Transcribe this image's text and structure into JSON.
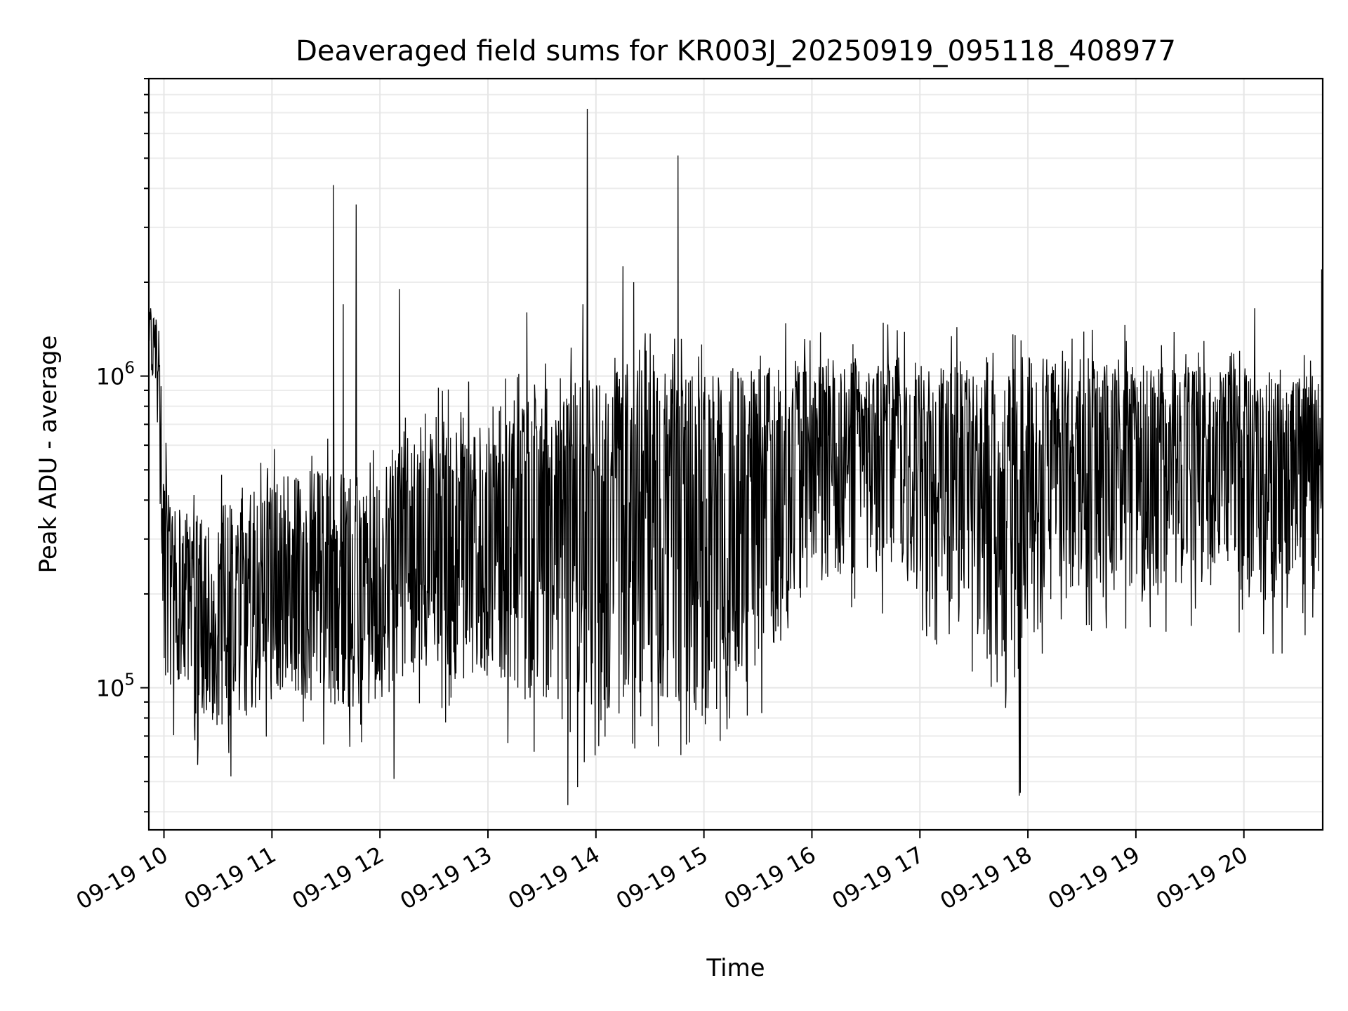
{
  "chart_data": {
    "type": "line",
    "title": "Deaveraged field sums for KR003J_20250919_095118_408977",
    "xlabel": "Time",
    "ylabel": "Peak ADU - average",
    "yscale": "log",
    "x_range_hours": [
      9.86,
      20.73
    ],
    "ylim": [
      35000,
      9000000
    ],
    "grid": true,
    "legend": "none",
    "line_color": "#000000",
    "x_ticks": [
      {
        "hour": 10,
        "label": "09-19 10"
      },
      {
        "hour": 11,
        "label": "09-19 11"
      },
      {
        "hour": 12,
        "label": "09-19 12"
      },
      {
        "hour": 13,
        "label": "09-19 13"
      },
      {
        "hour": 14,
        "label": "09-19 14"
      },
      {
        "hour": 15,
        "label": "09-19 15"
      },
      {
        "hour": 16,
        "label": "09-19 16"
      },
      {
        "hour": 17,
        "label": "09-19 17"
      },
      {
        "hour": 18,
        "label": "09-19 18"
      },
      {
        "hour": 19,
        "label": "09-19 19"
      },
      {
        "hour": 20,
        "label": "09-19 20"
      }
    ],
    "y_ticks": [
      {
        "value": 100000,
        "base": "10",
        "exp": "5"
      },
      {
        "value": 1000000,
        "base": "10",
        "exp": "6"
      }
    ],
    "series_envelope": {
      "hours": [
        9.86,
        9.95,
        10.0,
        10.25,
        10.5,
        10.75,
        11.0,
        11.25,
        11.5,
        11.75,
        12.0,
        12.25,
        12.5,
        12.75,
        13.0,
        13.25,
        13.5,
        13.75,
        14.0,
        14.25,
        14.5,
        14.75,
        15.0,
        15.25,
        15.5,
        15.75,
        16.0,
        16.25,
        16.5,
        16.75,
        17.0,
        17.25,
        17.5,
        17.75,
        18.0,
        18.25,
        18.5,
        18.75,
        19.0,
        19.25,
        19.5,
        19.75,
        20.0,
        20.25,
        20.5,
        20.73
      ],
      "typical": [
        1400000,
        1200000,
        300000,
        180000,
        170000,
        190000,
        210000,
        240000,
        230000,
        190000,
        200000,
        320000,
        350000,
        340000,
        320000,
        360000,
        370000,
        400000,
        420000,
        410000,
        400000,
        380000,
        360000,
        380000,
        420000,
        500000,
        560000,
        600000,
        620000,
        640000,
        600000,
        560000,
        480000,
        420000,
        460000,
        520000,
        540000,
        560000,
        580000,
        600000,
        620000,
        600000,
        580000,
        560000,
        560000,
        580000
      ],
      "high": [
        1700000,
        1600000,
        500000,
        350000,
        380000,
        420000,
        450000,
        520000,
        500000,
        480000,
        550000,
        700000,
        750000,
        750000,
        800000,
        850000,
        900000,
        950000,
        1000000,
        1050000,
        1050000,
        1000000,
        1000000,
        1050000,
        1100000,
        1150000,
        1150000,
        1150000,
        1150000,
        1150000,
        1150000,
        1150000,
        1150000,
        1150000,
        1150000,
        1150000,
        1150000,
        1150000,
        1100000,
        1100000,
        1100000,
        1050000,
        1050000,
        1050000,
        1050000,
        1100000
      ],
      "low": [
        1050000,
        900000,
        110000,
        80000,
        75000,
        80000,
        90000,
        95000,
        90000,
        85000,
        90000,
        105000,
        110000,
        105000,
        100000,
        90000,
        80000,
        80000,
        80000,
        85000,
        90000,
        85000,
        85000,
        90000,
        110000,
        150000,
        190000,
        220000,
        230000,
        240000,
        200000,
        170000,
        140000,
        110000,
        140000,
        190000,
        200000,
        210000,
        200000,
        210000,
        220000,
        210000,
        190000,
        180000,
        180000,
        210000
      ]
    },
    "spikes": [
      {
        "hour": 11.57,
        "value": 4100000
      },
      {
        "hour": 11.78,
        "value": 3550000
      },
      {
        "hour": 11.66,
        "value": 1700000
      },
      {
        "hour": 12.18,
        "value": 1900000
      },
      {
        "hour": 13.36,
        "value": 1600000
      },
      {
        "hour": 13.92,
        "value": 7200000
      },
      {
        "hour": 13.88,
        "value": 1700000
      },
      {
        "hour": 14.25,
        "value": 2250000
      },
      {
        "hour": 14.35,
        "value": 2000000
      },
      {
        "hour": 14.76,
        "value": 5100000
      },
      {
        "hour": 17.92,
        "value": 45000
      },
      {
        "hour": 17.93,
        "value": 46000
      },
      {
        "hour": 13.74,
        "value": 42000
      },
      {
        "hour": 13.83,
        "value": 48000
      },
      {
        "hour": 10.62,
        "value": 52000
      },
      {
        "hour": 12.13,
        "value": 51000
      },
      {
        "hour": 20.72,
        "value": 2200000
      },
      {
        "hour": 20.1,
        "value": 1650000
      }
    ]
  }
}
